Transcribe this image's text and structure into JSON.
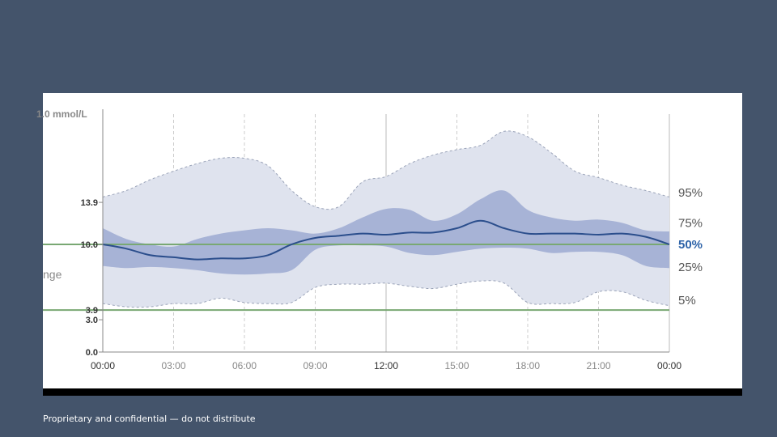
{
  "footer": {
    "note": "Proprietary and confidential — do not distribute"
  },
  "colors": {
    "background": "#44546b",
    "panel": "#ffffff",
    "band_outer": "#dfe3ee",
    "band_inner": "#a7b3d6",
    "median": "#2b4e8c",
    "target_lines": "#79a873",
    "axis": "#888888",
    "grid": "#cccccc",
    "label": "#555555",
    "median_label": "#2d63a8"
  },
  "chart_data": {
    "type": "area",
    "title": "",
    "unit_label": "1.0 mmol/L",
    "partial_label": "nge",
    "xlabel": "",
    "ylabel": "",
    "ylim": [
      0,
      22.1
    ],
    "xlim": [
      0,
      24
    ],
    "x_ticks": [
      {
        "value": 0,
        "label": "00:00"
      },
      {
        "value": 3,
        "label": "03:00"
      },
      {
        "value": 6,
        "label": "06:00"
      },
      {
        "value": 9,
        "label": "09:00"
      },
      {
        "value": 12,
        "label": "12:00"
      },
      {
        "value": 15,
        "label": "15:00"
      },
      {
        "value": 18,
        "label": "18:00"
      },
      {
        "value": 21,
        "label": "21:00"
      },
      {
        "value": 24,
        "label": "00:00"
      }
    ],
    "y_ticks": [
      {
        "value": 0.0,
        "label": "0.0"
      },
      {
        "value": 3.0,
        "label": "3.0"
      },
      {
        "value": 3.9,
        "label": "3.9"
      },
      {
        "value": 10.0,
        "label": "10.0"
      },
      {
        "value": 13.9,
        "label": "13.9"
      }
    ],
    "target_range": [
      3.9,
      10.0
    ],
    "x": [
      0,
      1,
      2,
      3,
      4,
      5,
      6,
      7,
      8,
      9,
      10,
      11,
      12,
      13,
      14,
      15,
      16,
      17,
      18,
      19,
      20,
      21,
      22,
      23,
      24
    ],
    "series": [
      {
        "name": "95%",
        "values": [
          14.4,
          15.0,
          16.0,
          16.8,
          17.5,
          18.0,
          18.0,
          17.3,
          15.0,
          13.5,
          13.5,
          15.8,
          16.3,
          17.5,
          18.3,
          18.8,
          19.2,
          20.5,
          20.0,
          18.5,
          16.8,
          16.2,
          15.5,
          15.0,
          14.4
        ]
      },
      {
        "name": "75%",
        "values": [
          11.5,
          10.5,
          10.0,
          9.8,
          10.5,
          11.0,
          11.3,
          11.5,
          11.3,
          11.0,
          11.5,
          12.5,
          13.3,
          13.2,
          12.2,
          12.8,
          14.2,
          15.0,
          13.2,
          12.5,
          12.2,
          12.3,
          12.0,
          11.3,
          11.2
        ]
      },
      {
        "name": "50%",
        "values": [
          10.0,
          9.6,
          9.0,
          8.8,
          8.6,
          8.7,
          8.7,
          9.0,
          10.0,
          10.6,
          10.8,
          11.0,
          10.9,
          11.1,
          11.1,
          11.5,
          12.2,
          11.5,
          11.0,
          11.0,
          11.0,
          10.9,
          11.0,
          10.7,
          10.0
        ]
      },
      {
        "name": "25%",
        "values": [
          8.0,
          7.8,
          7.9,
          7.8,
          7.6,
          7.3,
          7.2,
          7.3,
          7.6,
          9.5,
          9.9,
          9.9,
          9.8,
          9.2,
          9.0,
          9.3,
          9.6,
          9.7,
          9.6,
          9.2,
          9.3,
          9.3,
          9.0,
          8.0,
          7.8
        ]
      },
      {
        "name": "5%",
        "values": [
          4.5,
          4.2,
          4.2,
          4.5,
          4.5,
          5.0,
          4.6,
          4.5,
          4.6,
          6.0,
          6.3,
          6.3,
          6.4,
          6.1,
          5.9,
          6.3,
          6.6,
          6.4,
          4.6,
          4.5,
          4.6,
          5.6,
          5.6,
          4.8,
          4.3
        ]
      }
    ],
    "band_labels": [
      {
        "label": "95%",
        "value": 14.8
      },
      {
        "label": "75%",
        "value": 12.0
      },
      {
        "label": "50%",
        "value": 10.0
      },
      {
        "label": "25%",
        "value": 7.9
      },
      {
        "label": "5%",
        "value": 4.8
      }
    ],
    "grid": true,
    "legend": "right"
  }
}
